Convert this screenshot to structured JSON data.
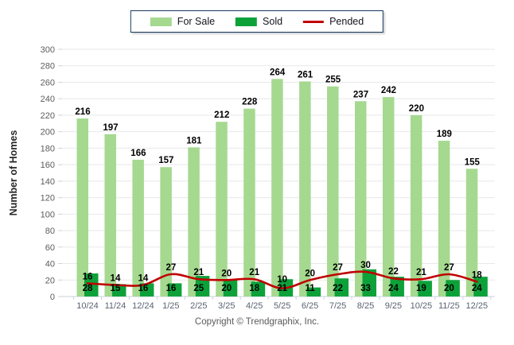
{
  "page": {
    "copyright": "Copyright © Trendgraphix, Inc."
  },
  "chart_data": {
    "type": "bar",
    "subtype": "overlapped bars with smoothed line overlay",
    "categories": [
      "10/24",
      "11/24",
      "12/24",
      "1/25",
      "2/25",
      "3/25",
      "4/25",
      "5/25",
      "6/25",
      "7/25",
      "8/25",
      "9/25",
      "10/25",
      "11/25",
      "12/25"
    ],
    "series": [
      {
        "name": "For Sale",
        "type": "bar",
        "color": "#A5D98F",
        "values": [
          216,
          197,
          166,
          157,
          181,
          212,
          228,
          264,
          261,
          255,
          237,
          242,
          220,
          189,
          155
        ]
      },
      {
        "name": "Sold",
        "type": "bar",
        "color": "#0DA13A",
        "values": [
          28,
          15,
          16,
          16,
          25,
          20,
          18,
          21,
          11,
          22,
          33,
          24,
          19,
          20,
          24
        ]
      },
      {
        "name": "Pended",
        "type": "line",
        "color": "#C00000",
        "values": [
          16,
          14,
          14,
          27,
          21,
          20,
          21,
          10,
          20,
          27,
          30,
          22,
          21,
          27,
          18
        ]
      }
    ],
    "title": "",
    "xlabel": "",
    "ylabel": "Number of Homes",
    "ylim": [
      0,
      300
    ],
    "ytick_step": 20,
    "grid": true,
    "legend_position": "top-center",
    "colors": {
      "gridline": "#E8E8E8",
      "axis_line": "#C9D2DF",
      "y_tick_text": "#5C5C5C",
      "x_tick_text": "#5A6372",
      "value_label_text": "#000000",
      "legend_border": "#17375E",
      "copyright_text": "#595959"
    }
  }
}
